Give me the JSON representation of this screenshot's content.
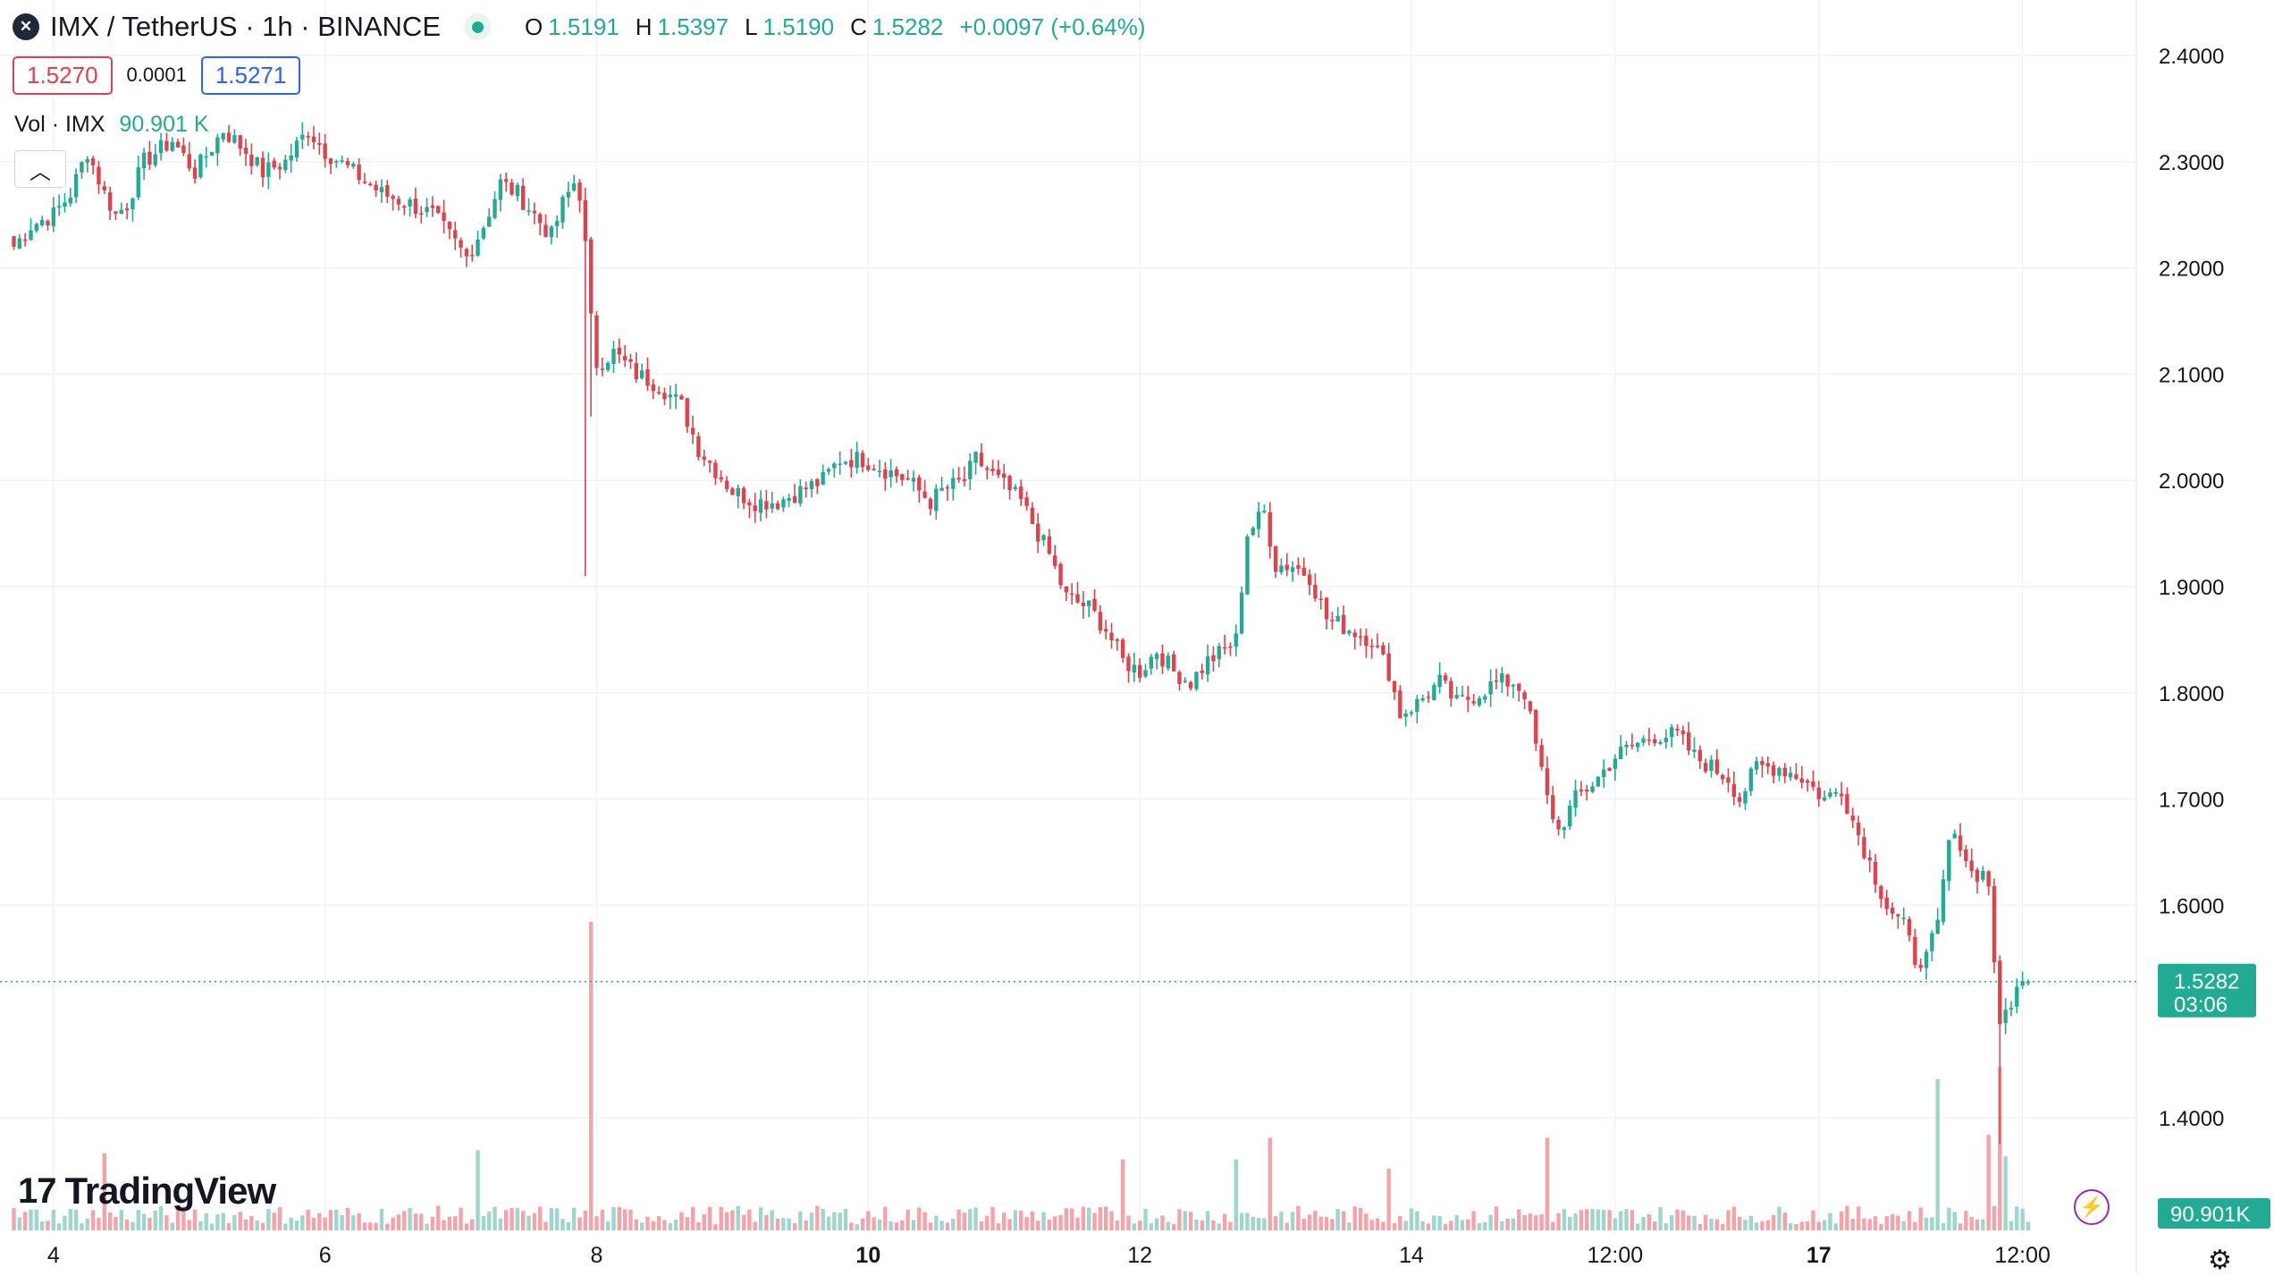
{
  "header": {
    "symbol_icon": "✕",
    "title": "IMX / TetherUS · 1h · BINANCE",
    "ohlc": [
      {
        "key": "O",
        "value": "1.5191"
      },
      {
        "key": "H",
        "value": "1.5397"
      },
      {
        "key": "L",
        "value": "1.5190"
      },
      {
        "key": "C",
        "value": "1.5282"
      }
    ],
    "change": "+0.0097 (+0.64%)",
    "sell_price": "1.5270",
    "spread": "0.0001",
    "buy_price": "1.5271",
    "volume_label": "Vol · IMX",
    "volume_value": "90.901 K",
    "collapse_icon": "chevron-up-icon"
  },
  "branding": {
    "logo_text": "TradingView"
  },
  "colors": {
    "up": "#22ab94",
    "down": "#e0424c",
    "up_volume": "#9fd6cc",
    "down_volume": "#f5a3a8",
    "grid": "#f0f3fa",
    "text": "#131722"
  },
  "chart_data": {
    "type": "candlestick",
    "symbol": "IMX / TetherUS",
    "interval": "1h",
    "exchange": "BINANCE",
    "price_axis": {
      "ticks": [
        "2.4000",
        "2.3000",
        "2.2000",
        "2.1000",
        "2.0000",
        "1.9000",
        "1.8000",
        "1.7000",
        "1.6000",
        "1.4000"
      ],
      "range": [
        1.335,
        2.447
      ]
    },
    "time_axis": {
      "ticks": [
        {
          "label": "4",
          "bold": false,
          "index": 7
        },
        {
          "label": "6",
          "bold": false,
          "index": 55
        },
        {
          "label": "8",
          "bold": false,
          "index": 103
        },
        {
          "label": "10",
          "bold": true,
          "index": 151
        },
        {
          "label": "12",
          "bold": false,
          "index": 199
        },
        {
          "label": "14",
          "bold": false,
          "index": 247
        },
        {
          "label": "12:00",
          "bold": false,
          "index": 283
        },
        {
          "label": "17",
          "bold": true,
          "index": 319
        },
        {
          "label": "12:00",
          "bold": false,
          "index": 355
        }
      ]
    },
    "last_price": {
      "value": "1.5282",
      "countdown": "03:06"
    },
    "volume_last": "90.901K",
    "anchors": [
      [
        0,
        2.22
      ],
      [
        3,
        2.24
      ],
      [
        7,
        2.25
      ],
      [
        10,
        2.27
      ],
      [
        13,
        2.31
      ],
      [
        16,
        2.27
      ],
      [
        18,
        2.25
      ],
      [
        20,
        2.26
      ],
      [
        23,
        2.3
      ],
      [
        28,
        2.32
      ],
      [
        32,
        2.29
      ],
      [
        37,
        2.33
      ],
      [
        41,
        2.31
      ],
      [
        44,
        2.29
      ],
      [
        48,
        2.3
      ],
      [
        52,
        2.33
      ],
      [
        55,
        2.31
      ],
      [
        60,
        2.29
      ],
      [
        65,
        2.27
      ],
      [
        70,
        2.26
      ],
      [
        74,
        2.25
      ],
      [
        77,
        2.23
      ],
      [
        80,
        2.21
      ],
      [
        83,
        2.24
      ],
      [
        86,
        2.28
      ],
      [
        89,
        2.27
      ],
      [
        92,
        2.25
      ],
      [
        95,
        2.23
      ],
      [
        97,
        2.26
      ],
      [
        99,
        2.28
      ],
      [
        100,
        2.27
      ],
      [
        101,
        2.22
      ],
      [
        102,
        2.15
      ],
      [
        103,
        2.11
      ],
      [
        106,
        2.12
      ],
      [
        110,
        2.1
      ],
      [
        114,
        2.09
      ],
      [
        118,
        2.07
      ],
      [
        121,
        2.03
      ],
      [
        124,
        2.01
      ],
      [
        127,
        1.99
      ],
      [
        131,
        1.98
      ],
      [
        135,
        1.98
      ],
      [
        139,
        1.99
      ],
      [
        143,
        2.0
      ],
      [
        146,
        2.02
      ],
      [
        150,
        2.02
      ],
      [
        154,
        2.01
      ],
      [
        158,
        2.0
      ],
      [
        162,
        1.98
      ],
      [
        164,
        1.99
      ],
      [
        168,
        2.0
      ],
      [
        170,
        2.02
      ],
      [
        174,
        2.0
      ],
      [
        178,
        1.98
      ],
      [
        180,
        1.96
      ],
      [
        183,
        1.93
      ],
      [
        186,
        1.89
      ],
      [
        190,
        1.88
      ],
      [
        193,
        1.86
      ],
      [
        196,
        1.83
      ],
      [
        199,
        1.82
      ],
      [
        202,
        1.84
      ],
      [
        205,
        1.82
      ],
      [
        208,
        1.81
      ],
      [
        211,
        1.83
      ],
      [
        214,
        1.84
      ],
      [
        216,
        1.85
      ],
      [
        218,
        1.95
      ],
      [
        221,
        1.97
      ],
      [
        223,
        1.92
      ],
      [
        226,
        1.92
      ],
      [
        229,
        1.91
      ],
      [
        232,
        1.87
      ],
      [
        236,
        1.86
      ],
      [
        240,
        1.85
      ],
      [
        243,
        1.82
      ],
      [
        245,
        1.78
      ],
      [
        248,
        1.79
      ],
      [
        252,
        1.81
      ],
      [
        255,
        1.79
      ],
      [
        259,
        1.8
      ],
      [
        262,
        1.81
      ],
      [
        265,
        1.81
      ],
      [
        267,
        1.8
      ],
      [
        269,
        1.75
      ],
      [
        271,
        1.7
      ],
      [
        273,
        1.67
      ],
      [
        276,
        1.7
      ],
      [
        280,
        1.72
      ],
      [
        283,
        1.74
      ],
      [
        286,
        1.75
      ],
      [
        290,
        1.76
      ],
      [
        294,
        1.76
      ],
      [
        297,
        1.74
      ],
      [
        300,
        1.73
      ],
      [
        303,
        1.72
      ],
      [
        305,
        1.7
      ],
      [
        308,
        1.73
      ],
      [
        312,
        1.73
      ],
      [
        316,
        1.72
      ],
      [
        320,
        1.7
      ],
      [
        323,
        1.71
      ],
      [
        325,
        1.68
      ],
      [
        328,
        1.64
      ],
      [
        331,
        1.6
      ],
      [
        334,
        1.58
      ],
      [
        336,
        1.55
      ],
      [
        338,
        1.55
      ],
      [
        340,
        1.58
      ],
      [
        342,
        1.66
      ],
      [
        344,
        1.66
      ],
      [
        346,
        1.63
      ],
      [
        348,
        1.63
      ],
      [
        349,
        1.62
      ],
      [
        350,
        1.55
      ],
      [
        351,
        1.48
      ],
      [
        352,
        1.5
      ],
      [
        354,
        1.52
      ],
      [
        356,
        1.53
      ]
    ],
    "events": [
      {
        "index": 101,
        "low": 1.91
      },
      {
        "index": 102,
        "low": 2.06
      },
      {
        "index": 351,
        "low": 1.375
      },
      {
        "index": 338,
        "low": 1.53
      }
    ],
    "volume_spikes": [
      {
        "index": 102,
        "value": 1.0
      },
      {
        "index": 351,
        "value": 0.53
      },
      {
        "index": 340,
        "value": 0.49
      },
      {
        "index": 349,
        "value": 0.31
      },
      {
        "index": 271,
        "value": 0.3
      },
      {
        "index": 222,
        "value": 0.3
      },
      {
        "index": 82,
        "value": 0.26
      },
      {
        "index": 16,
        "value": 0.25
      },
      {
        "index": 196,
        "value": 0.23
      },
      {
        "index": 216,
        "value": 0.23
      },
      {
        "index": 243,
        "value": 0.2
      },
      {
        "index": 352,
        "value": 0.24
      }
    ]
  }
}
